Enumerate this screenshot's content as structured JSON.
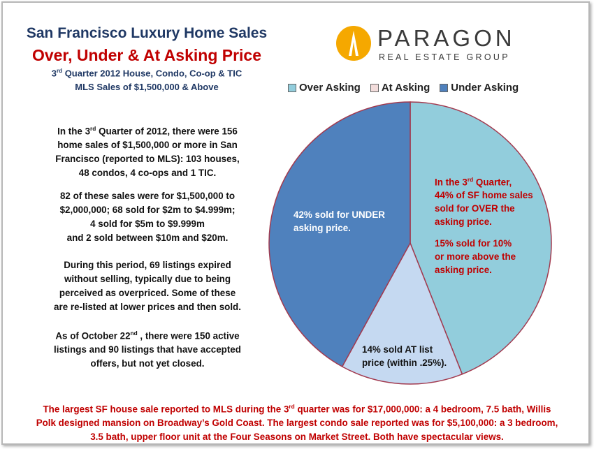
{
  "header": {
    "title_line1": "San Francisco  Luxury Home Sales",
    "title_line2": "Over, Under & At Asking Price",
    "sub_line1_pre": "3",
    "sub_line1_sup": "rd",
    "sub_line1_post": " Quarter 2012 House, Condo, Co-op & TIC",
    "sub_line2": "MLS Sales of $1,500,000  & Above"
  },
  "logo": {
    "name": "PARAGON",
    "tagline": "REAL ESTATE GROUP",
    "brand_color": "#f5a800"
  },
  "body": {
    "p1_l1_pre": "In the 3",
    "p1_l1_sup": "rd",
    "p1_l1_post": " Quarter of 2012, there were 156",
    "p1_l2": "home sales  of $1,500,000  or more in San",
    "p1_l3": "Francisco (reported to MLS): 103 houses,",
    "p1_l4": "48 condos, 4 co-ops and 1 TIC.",
    "p2_l1": "82 of these sales were for $1,500,000 to",
    "p2_l2": "$2,000,000;  68 sold for $2m to $4.999m;",
    "p2_l3": "4 sold for $5m to $9.999m",
    "p2_l4": "and 2 sold between $10m and $20m.",
    "p3_l1": "During this period, 69 listings expired",
    "p3_l2": "without selling, typically due to being",
    "p3_l3": "perceived as overpriced. Some of these",
    "p3_l4": "are re-listed at lower prices and then sold.",
    "p4_l1_pre": "As of October 22",
    "p4_l1_sup": "nd",
    "p4_l1_post": " , there were 150 active",
    "p4_l2": "listings and 90 listings that have accepted",
    "p4_l3": "offers, but not yet closed."
  },
  "footer": {
    "l1_pre": "The largest SF house sale reported to MLS during the 3",
    "l1_sup": "rd",
    "l1_post": " quarter was for $17,000,000:  a 4 bedroom, 7.5 bath, Willis",
    "l2": "Polk designed mansion on Broadway’s Gold Coast. The largest condo sale reported was for $5,100,000: a 3 bedroom,",
    "l3": "3.5 bath, upper floor unit at the Four Seasons on Market Street.  Both have spectacular views."
  },
  "chart_data": {
    "type": "pie",
    "categories": [
      "Over Asking",
      "At Asking",
      "Under Asking"
    ],
    "values": [
      44,
      14,
      42
    ],
    "colors": [
      "#92cddc",
      "#c5d9f1",
      "#4f81bd"
    ],
    "legend_placement": "top",
    "annotations": {
      "over_l1_pre": "In the 3",
      "over_l1_sup": "rd",
      "over_l1_post": " Quarter,",
      "over_l2": "44% of SF home sales",
      "over_l3": "sold for OVER the",
      "over_l4": "asking price.",
      "over_l5": "15% sold for 10%",
      "over_l6": "or more above the",
      "over_l7": "asking price.",
      "under_l1": "42% sold for UNDER",
      "under_l2": "asking price.",
      "at_l1": "14% sold AT list",
      "at_l2": "price (within .25%)."
    }
  }
}
